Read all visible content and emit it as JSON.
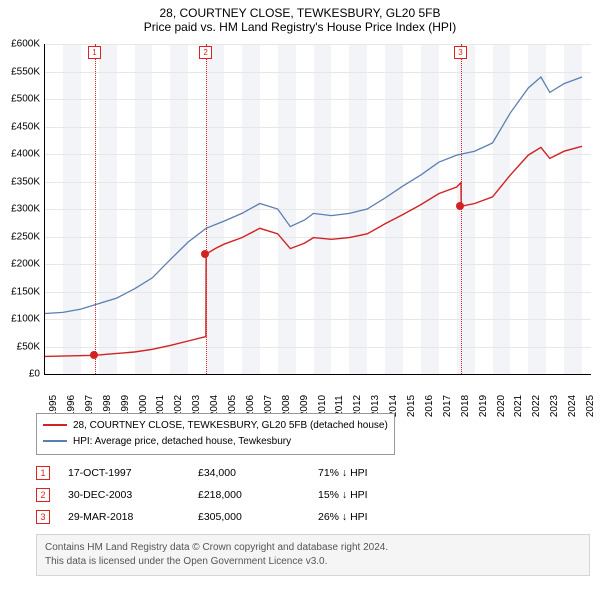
{
  "title": "28, COURTNEY CLOSE, TEWKESBURY, GL20 5FB",
  "subtitle": "Price paid vs. HM Land Registry's House Price Index (HPI)",
  "chart": {
    "type": "line",
    "background_color": "#ffffff",
    "band_color": "#f2f4f7",
    "grid_color": "#e7e7e7",
    "x_years": [
      1995,
      1996,
      1997,
      1998,
      1999,
      2000,
      2001,
      2002,
      2003,
      2004,
      2005,
      2006,
      2007,
      2008,
      2009,
      2010,
      2011,
      2012,
      2013,
      2014,
      2015,
      2016,
      2017,
      2018,
      2019,
      2020,
      2021,
      2022,
      2023,
      2024,
      2025
    ],
    "xlim": [
      1995,
      2025.5
    ],
    "ylim": [
      0,
      600000
    ],
    "ytick_step": 50000,
    "ylabel_prefix": "£",
    "ytick_labels": [
      "£0",
      "£50K",
      "£100K",
      "£150K",
      "£200K",
      "£250K",
      "£300K",
      "£350K",
      "£400K",
      "£450K",
      "£500K",
      "£550K",
      "£600K"
    ],
    "label_fontsize": 10,
    "series": [
      {
        "name": "hpi",
        "label": "HPI: Average price, detached house, Tewkesbury",
        "color": "#5b7fb3",
        "width": 1.3,
        "points": [
          [
            1995,
            110000
          ],
          [
            1996,
            112000
          ],
          [
            1997,
            118000
          ],
          [
            1998,
            128000
          ],
          [
            1999,
            138000
          ],
          [
            2000,
            155000
          ],
          [
            2001,
            175000
          ],
          [
            2002,
            208000
          ],
          [
            2003,
            240000
          ],
          [
            2004,
            265000
          ],
          [
            2005,
            278000
          ],
          [
            2006,
            292000
          ],
          [
            2007,
            310000
          ],
          [
            2008,
            300000
          ],
          [
            2008.7,
            268000
          ],
          [
            2009.5,
            280000
          ],
          [
            2010,
            292000
          ],
          [
            2011,
            288000
          ],
          [
            2012,
            292000
          ],
          [
            2013,
            300000
          ],
          [
            2014,
            320000
          ],
          [
            2015,
            342000
          ],
          [
            2016,
            362000
          ],
          [
            2017,
            385000
          ],
          [
            2018,
            398000
          ],
          [
            2019,
            405000
          ],
          [
            2020,
            420000
          ],
          [
            2021,
            475000
          ],
          [
            2022,
            520000
          ],
          [
            2022.7,
            540000
          ],
          [
            2023.2,
            512000
          ],
          [
            2024,
            528000
          ],
          [
            2025,
            540000
          ]
        ]
      },
      {
        "name": "property",
        "label": "28, COURTNEY CLOSE, TEWKESBURY, GL20 5FB (detached house)",
        "color": "#d22222",
        "width": 1.4,
        "points": [
          [
            1995,
            32000
          ],
          [
            1997.8,
            34000
          ],
          [
            1997.81,
            34000
          ],
          [
            1998.5,
            36000
          ],
          [
            2000,
            40000
          ],
          [
            2001,
            45000
          ],
          [
            2002,
            52000
          ],
          [
            2003,
            60000
          ],
          [
            2003.99,
            68000
          ],
          [
            2004.0,
            218000
          ],
          [
            2004.5,
            228000
          ],
          [
            2005,
            236000
          ],
          [
            2006,
            248000
          ],
          [
            2007,
            265000
          ],
          [
            2008,
            255000
          ],
          [
            2008.7,
            228000
          ],
          [
            2009.5,
            238000
          ],
          [
            2010,
            248000
          ],
          [
            2011,
            245000
          ],
          [
            2012,
            248000
          ],
          [
            2013,
            255000
          ],
          [
            2014,
            273000
          ],
          [
            2015,
            290000
          ],
          [
            2016,
            308000
          ],
          [
            2017,
            328000
          ],
          [
            2018,
            340000
          ],
          [
            2018.24,
            348000
          ],
          [
            2018.25,
            305000
          ],
          [
            2019,
            310000
          ],
          [
            2020,
            322000
          ],
          [
            2021,
            362000
          ],
          [
            2022,
            398000
          ],
          [
            2022.7,
            412000
          ],
          [
            2023.2,
            392000
          ],
          [
            2024,
            405000
          ],
          [
            2025,
            414000
          ]
        ]
      }
    ],
    "markers": [
      {
        "n": "1",
        "year": 1997.79,
        "value": 34000,
        "color": "#d22222"
      },
      {
        "n": "2",
        "year": 2004.0,
        "value": 218000,
        "color": "#d22222"
      },
      {
        "n": "3",
        "year": 2018.24,
        "value": 305000,
        "color": "#d22222"
      }
    ]
  },
  "legend": {
    "items": [
      {
        "color": "#d22222",
        "label": "28, COURTNEY CLOSE, TEWKESBURY, GL20 5FB (detached house)"
      },
      {
        "color": "#5b7fb3",
        "label": "HPI: Average price, detached house, Tewkesbury"
      }
    ]
  },
  "transactions": [
    {
      "n": "1",
      "date": "17-OCT-1997",
      "price": "£34,000",
      "pct": "71% ↓ HPI"
    },
    {
      "n": "2",
      "date": "30-DEC-2003",
      "price": "£218,000",
      "pct": "15% ↓ HPI"
    },
    {
      "n": "3",
      "date": "29-MAR-2018",
      "price": "£305,000",
      "pct": "26% ↓ HPI"
    }
  ],
  "attribution": {
    "line1": "Contains HM Land Registry data © Crown copyright and database right 2024.",
    "line2": "This data is licensed under the Open Government Licence v3.0."
  }
}
